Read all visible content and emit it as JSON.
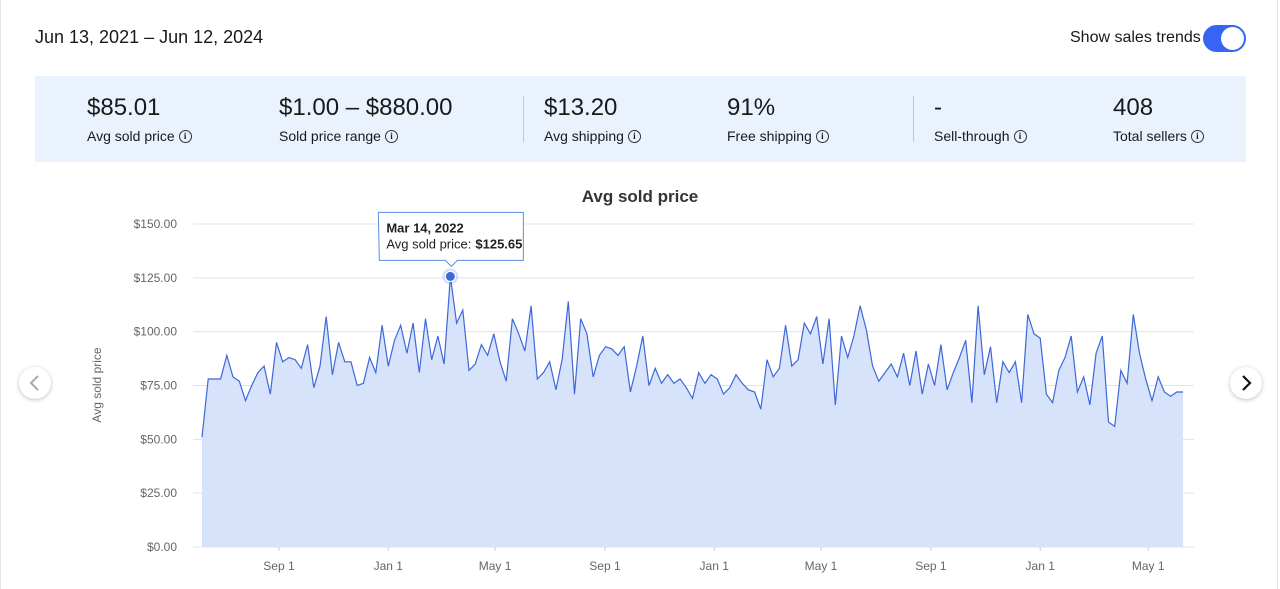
{
  "header": {
    "date_range": "Jun 13, 2021 – Jun 12, 2024",
    "toggle_label": "Show sales trends"
  },
  "stats": [
    {
      "value": "$85.01",
      "label": "Avg sold price"
    },
    {
      "value": "$1.00 – $880.00",
      "label": "Sold price range"
    },
    {
      "value": "$13.20",
      "label": "Avg shipping"
    },
    {
      "value": "91%",
      "label": "Free shipping"
    },
    {
      "value": "-",
      "label": "Sell-through"
    },
    {
      "value": "408",
      "label": "Total sellers"
    }
  ],
  "chart_data": {
    "type": "area",
    "title": "Avg sold price",
    "y_label": "Avg sold price",
    "color": "#3d68d8",
    "grid": true,
    "values": [
      51,
      78,
      78,
      78,
      89,
      79,
      77,
      68,
      75,
      81,
      84,
      71,
      95,
      86,
      88,
      87,
      83,
      94,
      74,
      84,
      107,
      80,
      95,
      86,
      86,
      75,
      76,
      88,
      81,
      103,
      84,
      96,
      103,
      90,
      104,
      81,
      106,
      87,
      98,
      85,
      125.65,
      104,
      110,
      82,
      85,
      94,
      89,
      99,
      86,
      77,
      106,
      99,
      91,
      112,
      78,
      81,
      86,
      73,
      87,
      114,
      71,
      106,
      99,
      79,
      89,
      93,
      92,
      89,
      93,
      72,
      84,
      98,
      75,
      83,
      76,
      80,
      76,
      78,
      74,
      69,
      81,
      76,
      80,
      78,
      71,
      74,
      80,
      76,
      73,
      72,
      64,
      87,
      79,
      83,
      103,
      84,
      87,
      104,
      99,
      107,
      85,
      106,
      66,
      98,
      88,
      98,
      112,
      101,
      84,
      77,
      81,
      85,
      79,
      90,
      75,
      91,
      71,
      85,
      75,
      94,
      73,
      81,
      88,
      96,
      67,
      112,
      80,
      93,
      67,
      86,
      81,
      86,
      67,
      108,
      99,
      97,
      71,
      67,
      82,
      88,
      98,
      72,
      79,
      66,
      90,
      98,
      58,
      56,
      82,
      76,
      108,
      90,
      78,
      68,
      79,
      72,
      70,
      72,
      72
    ],
    "xlim": [
      0,
      158
    ],
    "xticks": [
      {
        "value": 12.4,
        "label": "Sep 1"
      },
      {
        "value": 30,
        "label": "Jan 1"
      },
      {
        "value": 47.2,
        "label": "May 1"
      },
      {
        "value": 64.9,
        "label": "Sep 1"
      },
      {
        "value": 82.5,
        "label": "Jan 1"
      },
      {
        "value": 99.7,
        "label": "May 1"
      },
      {
        "value": 117.4,
        "label": "Sep 1"
      },
      {
        "value": 135,
        "label": "Jan 1"
      },
      {
        "value": 152.4,
        "label": "May 1"
      }
    ],
    "ylim": [
      0,
      150
    ],
    "yticks": [
      {
        "value": 0,
        "label": "$0.00"
      },
      {
        "value": 25,
        "label": "$25.00"
      },
      {
        "value": 50,
        "label": "$50.00"
      },
      {
        "value": 75,
        "label": "$75.00"
      },
      {
        "value": 100,
        "label": "$100.00"
      },
      {
        "value": 125,
        "label": "$125.00"
      },
      {
        "value": 150,
        "label": "$150.00"
      }
    ],
    "tooltip": {
      "index": 40,
      "date": "Mar 14, 2022",
      "label": "Avg sold price:",
      "value_label": "$125.65"
    }
  }
}
